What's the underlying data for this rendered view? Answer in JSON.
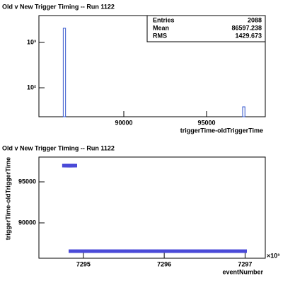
{
  "chart_data": [
    {
      "type": "histogram",
      "title": "Old v New Trigger Timing -- Run 1122",
      "x_label": "triggerTime-oldTriggerTime",
      "bins": [
        86340,
        86480,
        97180,
        97320
      ],
      "values": [
        2050,
        0,
        38
      ],
      "color": "#3355cc",
      "xlim": [
        84870,
        98550
      ],
      "xticks": [
        90000,
        95000
      ],
      "ylim": [
        23,
        3900
      ],
      "yticks": [
        {
          "value": 100,
          "label": "10²"
        },
        {
          "value": 1000,
          "label": "10³"
        }
      ],
      "log_y": true,
      "stats": [
        {
          "label": "Entries",
          "value": 2088
        },
        {
          "label": "Mean",
          "value": 86597.238
        },
        {
          "label": "RMS",
          "value": 1429.673
        }
      ]
    },
    {
      "type": "scatter",
      "title": "Old v New Trigger Timing -- Run 1122",
      "x_label": "eventNumber",
      "y_label": "triggerTime-oldTriggerTime",
      "x_exponent_label": "×10³",
      "color": "#4a4ad8",
      "x": [
        7294.79,
        7294.81,
        7294.83,
        7294.85,
        7294.87,
        7294.87,
        7294.97,
        7295.07,
        7295.17,
        7295.27,
        7295.37,
        7295.47,
        7295.57,
        7295.67,
        7295.77,
        7295.87,
        7295.97,
        7296.07,
        7296.17,
        7296.27,
        7296.37,
        7296.47,
        7296.57,
        7296.67,
        7296.77,
        7296.87,
        7296.97
      ],
      "values": [
        96980,
        96980,
        96980,
        96980,
        96980,
        86550,
        86550,
        86550,
        86550,
        86550,
        86550,
        86550,
        86550,
        86550,
        86550,
        86550,
        86550,
        86550,
        86550,
        86550,
        86550,
        86550,
        86550,
        86550,
        86550,
        86550,
        86550
      ],
      "xlim": [
        7294.45,
        7297.25
      ],
      "xticks": [
        7295,
        7296,
        7297
      ],
      "ylim": [
        85690,
        98020
      ],
      "yticks": [
        90000,
        95000
      ]
    }
  ]
}
